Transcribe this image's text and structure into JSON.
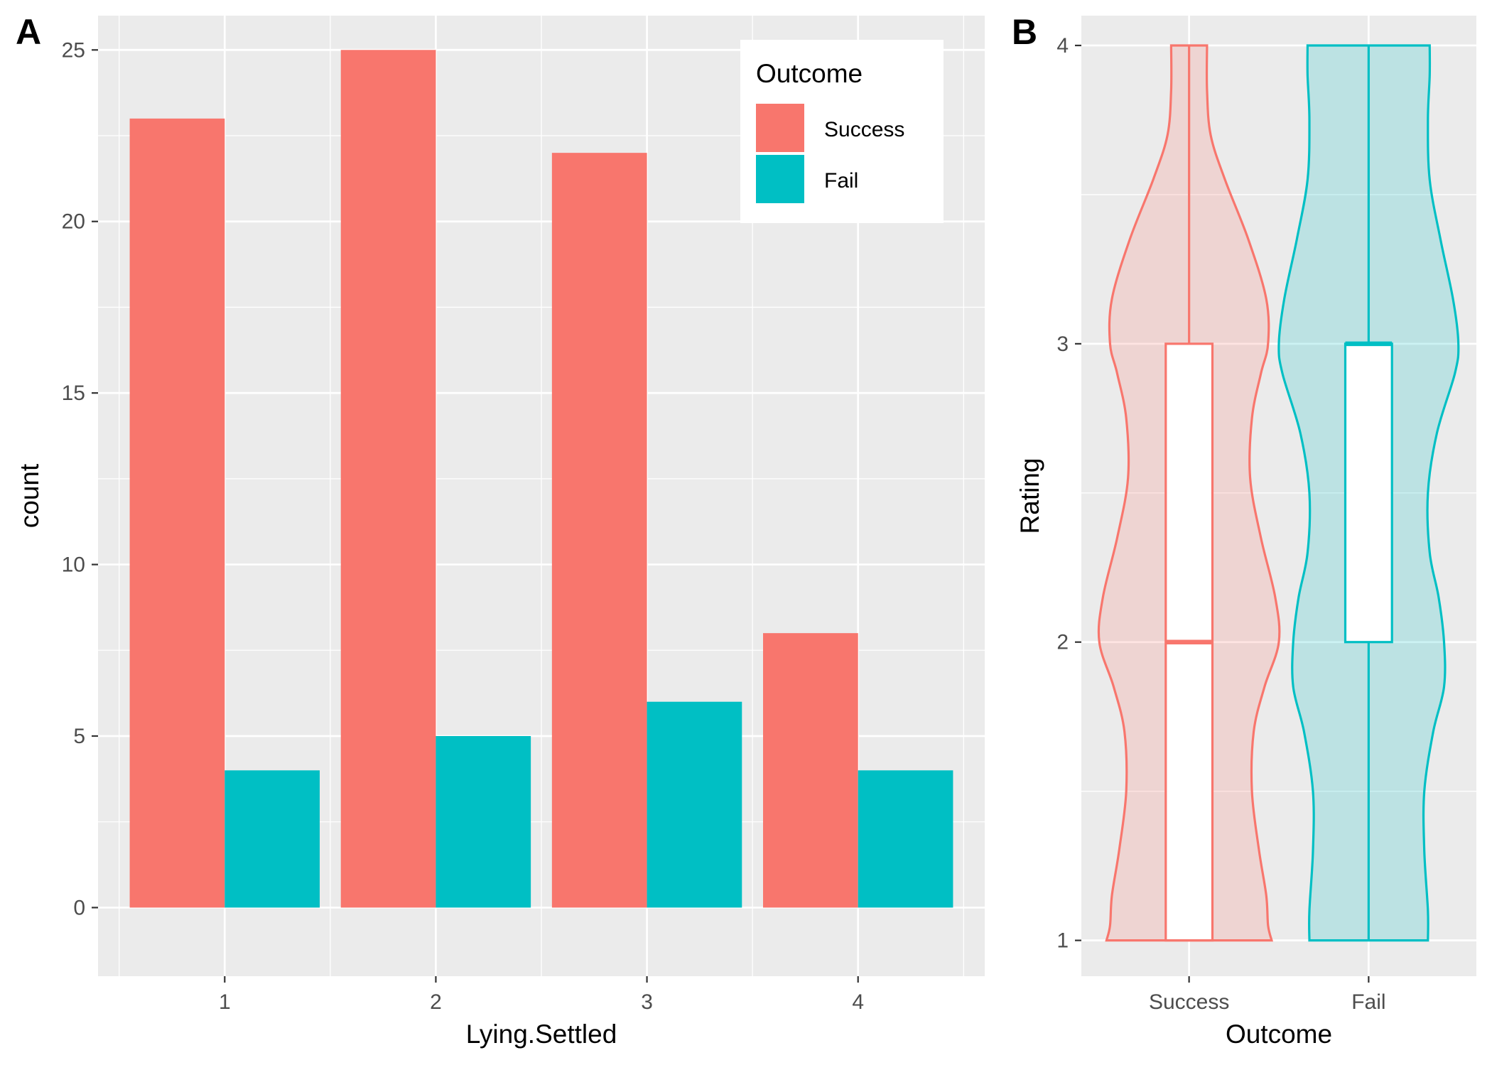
{
  "chart_data": [
    {
      "panel_label": "A",
      "type": "bar",
      "xlabel": "Lying.Settled",
      "ylabel": "count",
      "categories": [
        "1",
        "2",
        "3",
        "4"
      ],
      "ylim": [
        -2,
        26
      ],
      "yticks": [
        0,
        5,
        10,
        15,
        20,
        25
      ],
      "grid": true,
      "legend": {
        "title": "Outcome",
        "position": "top-right"
      },
      "series": [
        {
          "name": "Success",
          "color": "#F8766D",
          "values": [
            23,
            25,
            22,
            8
          ]
        },
        {
          "name": "Fail",
          "color": "#00BFC4",
          "values": [
            4,
            5,
            6,
            4
          ]
        }
      ]
    },
    {
      "panel_label": "B",
      "type": "violin",
      "xlabel": "Outcome",
      "ylabel": "Rating",
      "categories": [
        "Success",
        "Fail"
      ],
      "ylim": [
        0.88,
        4.1
      ],
      "yticks": [
        1,
        2,
        3,
        4
      ],
      "grid": true,
      "series": [
        {
          "name": "Success",
          "color": "#F8766D",
          "box": {
            "min": 1,
            "q1": 1,
            "median": 2,
            "q3": 3,
            "max": 4
          },
          "density_halfwidth": [
            [
              1.0,
              0.46
            ],
            [
              1.05,
              0.44
            ],
            [
              1.15,
              0.43
            ],
            [
              1.3,
              0.39
            ],
            [
              1.5,
              0.35
            ],
            [
              1.7,
              0.36
            ],
            [
              1.85,
              0.42
            ],
            [
              2.0,
              0.5
            ],
            [
              2.15,
              0.48
            ],
            [
              2.35,
              0.4
            ],
            [
              2.55,
              0.34
            ],
            [
              2.75,
              0.35
            ],
            [
              2.9,
              0.4
            ],
            [
              3.0,
              0.44
            ],
            [
              3.15,
              0.43
            ],
            [
              3.35,
              0.33
            ],
            [
              3.55,
              0.2
            ],
            [
              3.7,
              0.12
            ],
            [
              3.85,
              0.1
            ],
            [
              4.0,
              0.1
            ]
          ]
        },
        {
          "name": "Fail",
          "color": "#00BFC4",
          "box": {
            "min": 1,
            "q1": 2,
            "median": 3,
            "q3": 3,
            "max": 4
          },
          "density_halfwidth": [
            [
              1.0,
              0.33
            ],
            [
              1.1,
              0.33
            ],
            [
              1.3,
              0.31
            ],
            [
              1.5,
              0.31
            ],
            [
              1.7,
              0.36
            ],
            [
              1.85,
              0.42
            ],
            [
              2.0,
              0.42
            ],
            [
              2.15,
              0.39
            ],
            [
              2.3,
              0.34
            ],
            [
              2.5,
              0.33
            ],
            [
              2.7,
              0.38
            ],
            [
              2.9,
              0.48
            ],
            [
              3.0,
              0.5
            ],
            [
              3.15,
              0.47
            ],
            [
              3.35,
              0.4
            ],
            [
              3.55,
              0.34
            ],
            [
              3.75,
              0.33
            ],
            [
              3.9,
              0.34
            ],
            [
              4.0,
              0.34
            ]
          ]
        }
      ]
    }
  ]
}
